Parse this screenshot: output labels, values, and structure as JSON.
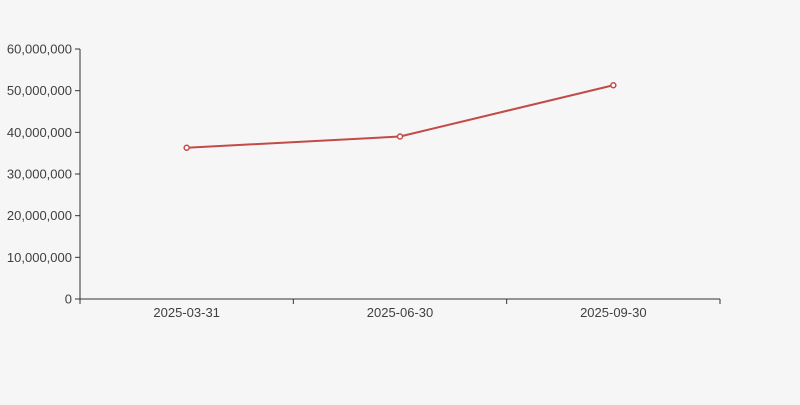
{
  "chart_data": {
    "type": "line",
    "title": "",
    "categories": [
      "2025-03-31",
      "2025-06-30",
      "2025-09-30"
    ],
    "series": [
      {
        "name": "series-1",
        "values": [
          36300000,
          39000000,
          51300000
        ],
        "color": "#c24b47",
        "marker": "hollow-circle",
        "marker_fill": "#ffffff"
      }
    ],
    "ylim": [
      0,
      60000000
    ],
    "ytick_interval": 10000000,
    "ytick_labels": [
      "0",
      "10,000,000",
      "20,000,000",
      "30,000,000",
      "40,000,000",
      "50,000,000",
      "60,000,000"
    ],
    "xlabel": "",
    "ylabel": "",
    "grid": "off",
    "legend": "none",
    "axis_color": "#333333",
    "label_color": "#404040",
    "background_color": "#f6f6f6"
  }
}
